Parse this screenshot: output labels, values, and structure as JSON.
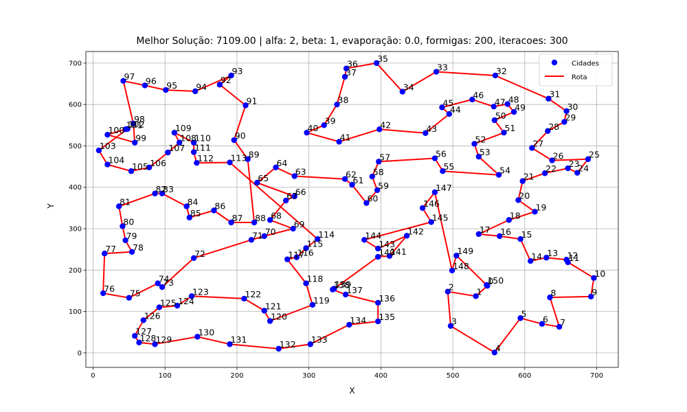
{
  "chart_data": {
    "type": "scatter",
    "title": "Melhor Solução: 7109.00 | alfa: 2, beta: 1, evaporação: 0.0, formigas: 200, iteracoes: 300",
    "xlabel": "X",
    "ylabel": "Y",
    "xlim": [
      -10,
      730
    ],
    "ylim": [
      -35,
      728
    ],
    "xticks": [
      0,
      100,
      200,
      300,
      400,
      500,
      600,
      700
    ],
    "yticks": [
      0,
      100,
      200,
      300,
      400,
      500,
      600,
      700
    ],
    "grid": true,
    "legend_position": "top-right",
    "legend": [
      {
        "label": "Cidades",
        "marker": "circle",
        "color": "#0000ff"
      },
      {
        "label": "Rota",
        "marker": "line",
        "color": "#ff0000"
      }
    ],
    "colors": {
      "cities": "#0000ff",
      "route": "#ff0000"
    },
    "cities": [
      {
        "id": 0,
        "x": 548,
        "y": 162
      },
      {
        "id": 1,
        "x": 532,
        "y": 137
      },
      {
        "id": 2,
        "x": 493,
        "y": 148
      },
      {
        "id": 3,
        "x": 497,
        "y": 65
      },
      {
        "id": 4,
        "x": 558,
        "y": 1
      },
      {
        "id": 5,
        "x": 594,
        "y": 84
      },
      {
        "id": 6,
        "x": 624,
        "y": 70
      },
      {
        "id": 7,
        "x": 648,
        "y": 63
      },
      {
        "id": 8,
        "x": 635,
        "y": 134
      },
      {
        "id": 9,
        "x": 692,
        "y": 136
      },
      {
        "id": 10,
        "x": 696,
        "y": 181
      },
      {
        "id": 11,
        "x": 660,
        "y": 219
      },
      {
        "id": 12,
        "x": 658,
        "y": 225
      },
      {
        "id": 13,
        "x": 630,
        "y": 230
      },
      {
        "id": 14,
        "x": 608,
        "y": 222
      },
      {
        "id": 15,
        "x": 594,
        "y": 275
      },
      {
        "id": 16,
        "x": 565,
        "y": 282
      },
      {
        "id": 17,
        "x": 536,
        "y": 287
      },
      {
        "id": 18,
        "x": 578,
        "y": 321
      },
      {
        "id": 19,
        "x": 614,
        "y": 341
      },
      {
        "id": 20,
        "x": 591,
        "y": 369
      },
      {
        "id": 21,
        "x": 597,
        "y": 415
      },
      {
        "id": 22,
        "x": 628,
        "y": 434
      },
      {
        "id": 23,
        "x": 660,
        "y": 446
      },
      {
        "id": 24,
        "x": 673,
        "y": 435
      },
      {
        "id": 25,
        "x": 688,
        "y": 468
      },
      {
        "id": 26,
        "x": 638,
        "y": 465
      },
      {
        "id": 27,
        "x": 610,
        "y": 495
      },
      {
        "id": 28,
        "x": 632,
        "y": 536
      },
      {
        "id": 29,
        "x": 655,
        "y": 558
      },
      {
        "id": 30,
        "x": 658,
        "y": 584
      },
      {
        "id": 31,
        "x": 633,
        "y": 614
      },
      {
        "id": 32,
        "x": 559,
        "y": 670
      },
      {
        "id": 33,
        "x": 477,
        "y": 679
      },
      {
        "id": 34,
        "x": 430,
        "y": 631
      },
      {
        "id": 35,
        "x": 394,
        "y": 700
      },
      {
        "id": 36,
        "x": 352,
        "y": 687
      },
      {
        "id": 37,
        "x": 350,
        "y": 667
      },
      {
        "id": 38,
        "x": 339,
        "y": 600
      },
      {
        "id": 39,
        "x": 321,
        "y": 550
      },
      {
        "id": 40,
        "x": 297,
        "y": 532
      },
      {
        "id": 41,
        "x": 342,
        "y": 510
      },
      {
        "id": 42,
        "x": 398,
        "y": 540
      },
      {
        "id": 43,
        "x": 462,
        "y": 531
      },
      {
        "id": 44,
        "x": 495,
        "y": 577
      },
      {
        "id": 45,
        "x": 485,
        "y": 593
      },
      {
        "id": 46,
        "x": 527,
        "y": 612
      },
      {
        "id": 47,
        "x": 557,
        "y": 595
      },
      {
        "id": 48,
        "x": 576,
        "y": 601
      },
      {
        "id": 49,
        "x": 585,
        "y": 582
      },
      {
        "id": 50,
        "x": 558,
        "y": 562
      },
      {
        "id": 51,
        "x": 571,
        "y": 532
      },
      {
        "id": 52,
        "x": 530,
        "y": 505
      },
      {
        "id": 53,
        "x": 536,
        "y": 474
      },
      {
        "id": 54,
        "x": 564,
        "y": 430
      },
      {
        "id": 55,
        "x": 486,
        "y": 439
      },
      {
        "id": 56,
        "x": 475,
        "y": 470
      },
      {
        "id": 57,
        "x": 397,
        "y": 462
      },
      {
        "id": 58,
        "x": 388,
        "y": 426
      },
      {
        "id": 59,
        "x": 395,
        "y": 393
      },
      {
        "id": 60,
        "x": 380,
        "y": 362
      },
      {
        "id": 61,
        "x": 360,
        "y": 406
      },
      {
        "id": 62,
        "x": 350,
        "y": 420
      },
      {
        "id": 63,
        "x": 280,
        "y": 427
      },
      {
        "id": 64,
        "x": 254,
        "y": 448
      },
      {
        "id": 65,
        "x": 228,
        "y": 411
      },
      {
        "id": 66,
        "x": 280,
        "y": 378
      },
      {
        "id": 67,
        "x": 268,
        "y": 368
      },
      {
        "id": 68,
        "x": 246,
        "y": 321
      },
      {
        "id": 69,
        "x": 278,
        "y": 300
      },
      {
        "id": 70,
        "x": 238,
        "y": 282
      },
      {
        "id": 71,
        "x": 220,
        "y": 273
      },
      {
        "id": 72,
        "x": 140,
        "y": 229
      },
      {
        "id": 73,
        "x": 96,
        "y": 159
      },
      {
        "id": 74,
        "x": 90,
        "y": 168
      },
      {
        "id": 75,
        "x": 50,
        "y": 133
      },
      {
        "id": 76,
        "x": 14,
        "y": 144
      },
      {
        "id": 77,
        "x": 16,
        "y": 240
      },
      {
        "id": 78,
        "x": 54,
        "y": 244
      },
      {
        "id": 79,
        "x": 45,
        "y": 272
      },
      {
        "id": 80,
        "x": 41,
        "y": 306
      },
      {
        "id": 81,
        "x": 36,
        "y": 354
      },
      {
        "id": 82,
        "x": 86,
        "y": 385
      },
      {
        "id": 83,
        "x": 96,
        "y": 385
      },
      {
        "id": 84,
        "x": 130,
        "y": 354
      },
      {
        "id": 85,
        "x": 134,
        "y": 327
      },
      {
        "id": 86,
        "x": 168,
        "y": 344
      },
      {
        "id": 87,
        "x": 192,
        "y": 315
      },
      {
        "id": 88,
        "x": 224,
        "y": 315
      },
      {
        "id": 89,
        "x": 215,
        "y": 468
      },
      {
        "id": 90,
        "x": 196,
        "y": 514
      },
      {
        "id": 91,
        "x": 212,
        "y": 598
      },
      {
        "id": 92,
        "x": 176,
        "y": 648
      },
      {
        "id": 93,
        "x": 192,
        "y": 670
      },
      {
        "id": 94,
        "x": 142,
        "y": 632
      },
      {
        "id": 95,
        "x": 101,
        "y": 635
      },
      {
        "id": 96,
        "x": 72,
        "y": 646
      },
      {
        "id": 97,
        "x": 42,
        "y": 657
      },
      {
        "id": 98,
        "x": 56,
        "y": 554
      },
      {
        "id": 99,
        "x": 58,
        "y": 508
      },
      {
        "id": 100,
        "x": 20,
        "y": 527
      },
      {
        "id": 101,
        "x": 45,
        "y": 540
      },
      {
        "id": 102,
        "x": 48,
        "y": 541
      },
      {
        "id": 103,
        "x": 8,
        "y": 489
      },
      {
        "id": 104,
        "x": 20,
        "y": 455
      },
      {
        "id": 105,
        "x": 53,
        "y": 439
      },
      {
        "id": 106,
        "x": 78,
        "y": 448
      },
      {
        "id": 107,
        "x": 104,
        "y": 484
      },
      {
        "id": 108,
        "x": 120,
        "y": 508
      },
      {
        "id": 109,
        "x": 113,
        "y": 532
      },
      {
        "id": 110,
        "x": 140,
        "y": 508
      },
      {
        "id": 111,
        "x": 140,
        "y": 485
      },
      {
        "id": 112,
        "x": 144,
        "y": 459
      },
      {
        "id": 113,
        "x": 190,
        "y": 460
      },
      {
        "id": 114,
        "x": 312,
        "y": 275
      },
      {
        "id": 115,
        "x": 296,
        "y": 253
      },
      {
        "id": 116,
        "x": 283,
        "y": 231
      },
      {
        "id": 117,
        "x": 270,
        "y": 226
      },
      {
        "id": 118,
        "x": 296,
        "y": 168
      },
      {
        "id": 119,
        "x": 305,
        "y": 116
      },
      {
        "id": 120,
        "x": 246,
        "y": 77
      },
      {
        "id": 121,
        "x": 238,
        "y": 102
      },
      {
        "id": 122,
        "x": 210,
        "y": 131
      },
      {
        "id": 123,
        "x": 137,
        "y": 137
      },
      {
        "id": 124,
        "x": 117,
        "y": 114
      },
      {
        "id": 125,
        "x": 92,
        "y": 110
      },
      {
        "id": 126,
        "x": 70,
        "y": 79
      },
      {
        "id": 127,
        "x": 58,
        "y": 41
      },
      {
        "id": 128,
        "x": 64,
        "y": 25
      },
      {
        "id": 129,
        "x": 86,
        "y": 21
      },
      {
        "id": 130,
        "x": 145,
        "y": 39
      },
      {
        "id": 131,
        "x": 190,
        "y": 21
      },
      {
        "id": 132,
        "x": 258,
        "y": 10
      },
      {
        "id": 133,
        "x": 302,
        "y": 21
      },
      {
        "id": 134,
        "x": 356,
        "y": 68
      },
      {
        "id": 135,
        "x": 396,
        "y": 76
      },
      {
        "id": 136,
        "x": 396,
        "y": 121
      },
      {
        "id": 137,
        "x": 351,
        "y": 141
      },
      {
        "id": 138,
        "x": 333,
        "y": 153
      },
      {
        "id": 139,
        "x": 335,
        "y": 155
      },
      {
        "id": 140,
        "x": 396,
        "y": 232
      },
      {
        "id": 141,
        "x": 412,
        "y": 234
      },
      {
        "id": 142,
        "x": 436,
        "y": 283
      },
      {
        "id": 143,
        "x": 396,
        "y": 252
      },
      {
        "id": 144,
        "x": 377,
        "y": 273
      },
      {
        "id": 145,
        "x": 470,
        "y": 316
      },
      {
        "id": 146,
        "x": 458,
        "y": 350
      },
      {
        "id": 147,
        "x": 475,
        "y": 388
      },
      {
        "id": 148,
        "x": 499,
        "y": 199
      },
      {
        "id": 149,
        "x": 505,
        "y": 235
      },
      {
        "id": 150,
        "x": 547,
        "y": 164
      }
    ],
    "route": [
      0,
      1,
      2,
      3,
      4,
      5,
      6,
      7,
      8,
      9,
      10,
      11,
      12,
      13,
      14,
      15,
      16,
      17,
      18,
      19,
      20,
      21,
      22,
      23,
      24,
      25,
      26,
      27,
      28,
      29,
      30,
      31,
      32,
      33,
      34,
      35,
      36,
      37,
      38,
      39,
      40,
      41,
      42,
      43,
      44,
      45,
      46,
      47,
      48,
      49,
      50,
      51,
      52,
      53,
      54,
      55,
      56,
      57,
      58,
      59,
      60,
      61,
      62,
      63,
      64,
      65,
      66,
      67,
      68,
      69,
      70,
      71,
      72,
      73,
      74,
      75,
      76,
      77,
      78,
      79,
      80,
      81,
      82,
      83,
      84,
      85,
      86,
      87,
      88,
      89,
      90,
      91,
      92,
      93,
      94,
      95,
      96,
      97,
      98,
      99,
      100,
      101,
      102,
      103,
      104,
      105,
      106,
      107,
      108,
      109,
      110,
      111,
      112,
      113,
      114,
      115,
      116,
      117,
      118,
      119,
      120,
      121,
      122,
      123,
      124,
      125,
      126,
      127,
      128,
      129,
      130,
      131,
      132,
      133,
      134,
      135,
      136,
      137,
      138,
      139,
      140,
      141,
      142,
      143,
      144,
      145,
      146,
      147,
      148,
      149,
      150
    ]
  }
}
